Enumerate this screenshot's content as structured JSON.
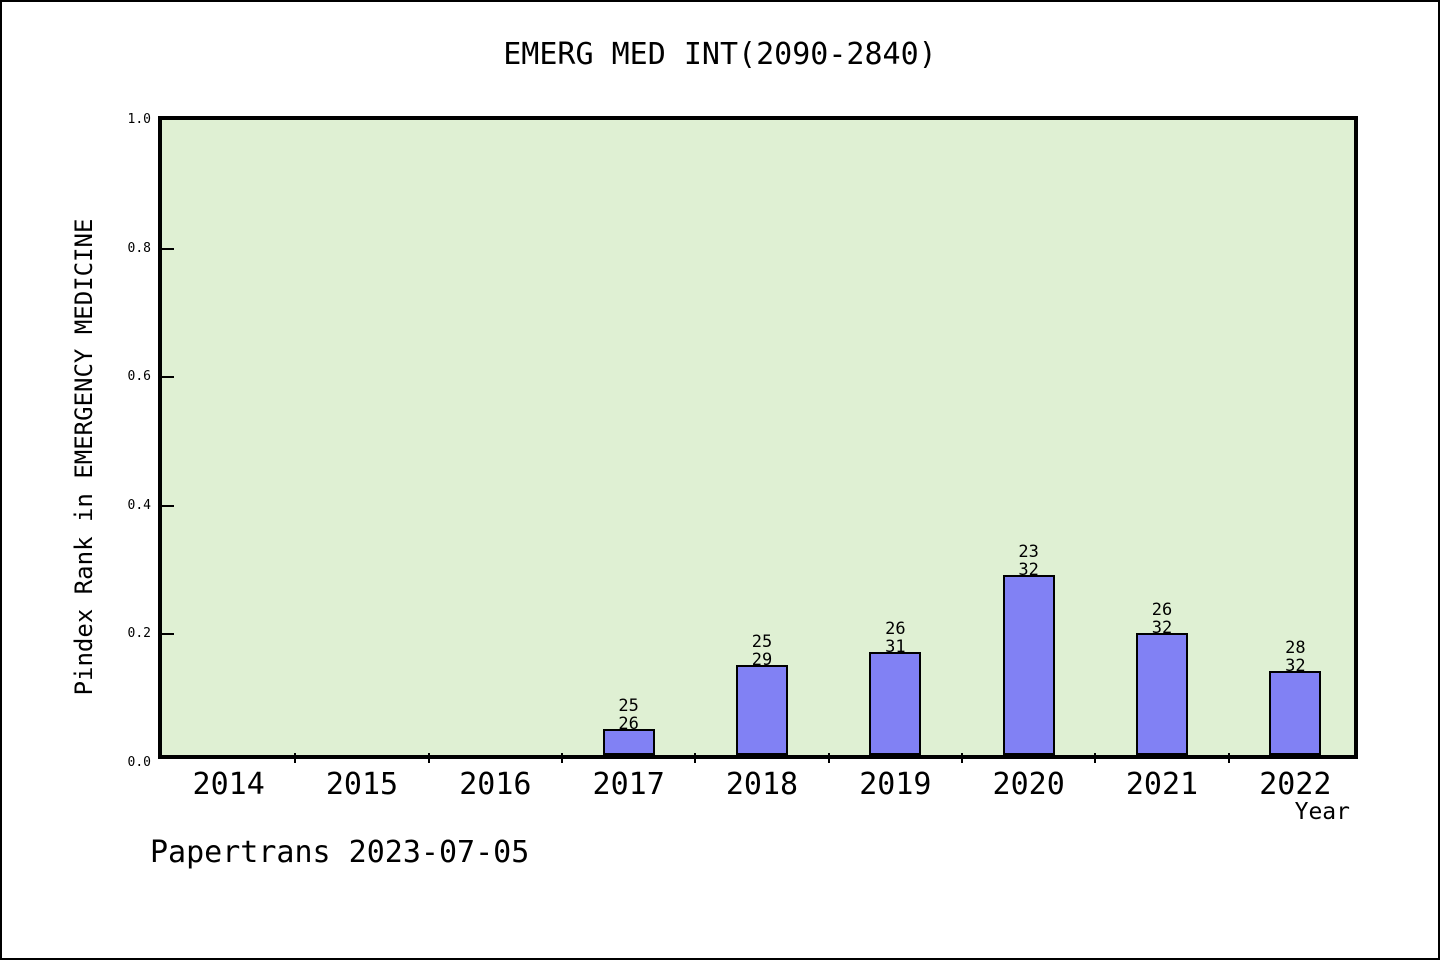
{
  "chart_data": {
    "type": "bar",
    "title": "EMERG MED INT(2090-2840)",
    "xlabel": "Year",
    "ylabel": "Pindex Rank in EMERGENCY MEDICINE",
    "ylim": [
      0.0,
      1.0
    ],
    "ytick_labels": [
      "0.0",
      "0.2",
      "0.4",
      "0.6",
      "0.8",
      "1.0"
    ],
    "categories": [
      "2014",
      "2015",
      "2016",
      "2017",
      "2018",
      "2019",
      "2020",
      "2021",
      "2022"
    ],
    "values": [
      null,
      null,
      null,
      0.04,
      0.14,
      0.16,
      0.28,
      0.19,
      0.13
    ],
    "bar_labels": [
      null,
      null,
      null,
      "25/26",
      "25/29",
      "26/31",
      "23/32",
      "26/32",
      "28/32"
    ],
    "grid": false,
    "legend": false,
    "layout": {
      "tick_direction": "in",
      "x_ticks_at": "category-boundaries"
    },
    "colors": {
      "plot_background": "#dff0d3",
      "bar_fill": "#8181f4",
      "bar_outline": "#000000",
      "axis": "#000000",
      "text": "#000000"
    }
  },
  "footer": {
    "text": "Papertrans 2023-07-05"
  }
}
